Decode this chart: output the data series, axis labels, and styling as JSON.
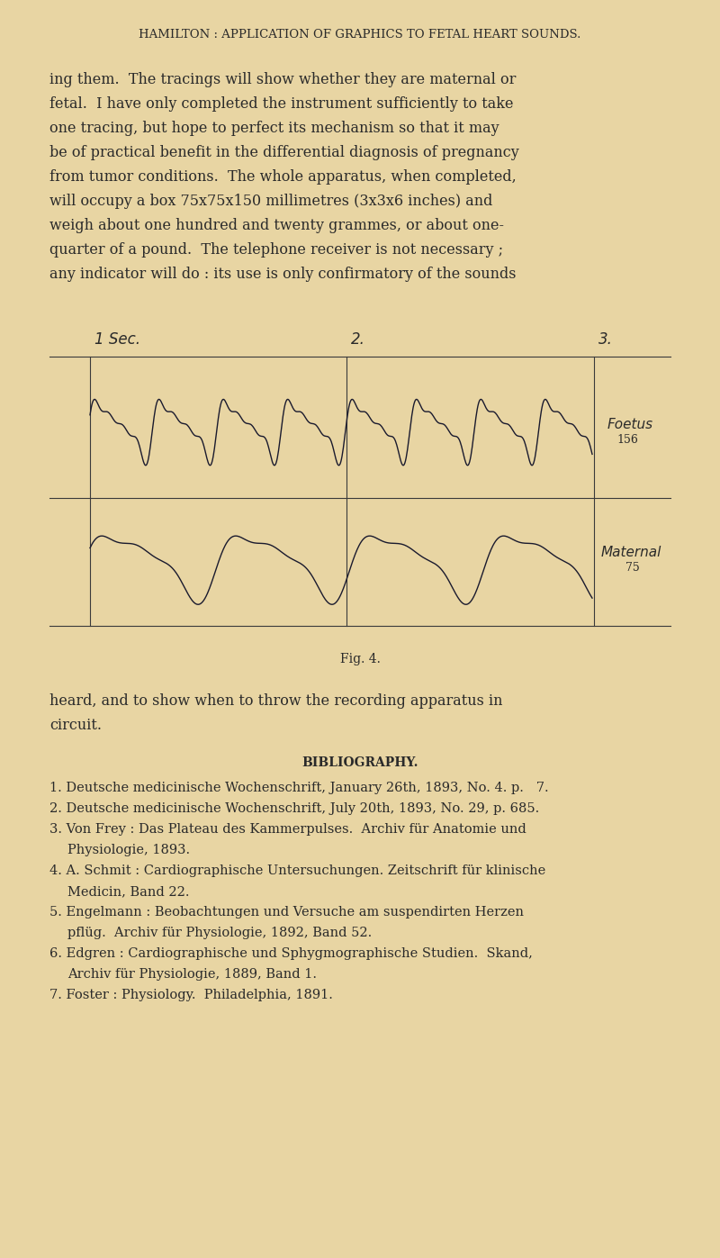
{
  "bg_color": "#e8d5a3",
  "text_color": "#2a2a2a",
  "title": "HAMILTON : APPLICATION OF GRAPHICS TO FETAL HEART SOUNDS.",
  "paragraph": "ing them.  The tracings will show whether they are maternal or fetal.  I have only completed the instrument sufficiently to take one tracing, but hope to perfect its mechanism so that it may be of practical benefit in the differential diagnosis of pregnancy from tumor conditions.  The whole apparatus, when completed, will occupy a box 75x75x150 millimetres (3x3x6 inches) and weigh about one hundred and twenty grammes, or about one-quarter of a pound.  The telephone receiver is not necessary ; any indicator will do : its use is only confirmatory of the sounds",
  "fig_caption": "Fig. 4.",
  "post_caption": "heard, and to show when to throw the recording apparatus in circuit.",
  "bibliography_title": "BIBLIOGRAPHY.",
  "bibliography": [
    "1. Deutsche medicinische Wochenschrift, January 26th, 1893, No. 4. p.   7.",
    "2. Deutsche medicinische Wochenschrift, July 20th, 1893, No. 29, p. 685.",
    "3. Von Frey : Das Plateau des Kammerpulses.  Archiv für Anatomie und Physiologie, 1893.",
    "4. A. Schmit : Cardiographische Untersuchungen. Zeitschrift für klinische Medicin, Band 22.",
    "5. Engelmann : Beobachtungen und Versuche am suspendirten Herzen pflüg.  Archiv für Physiologie, 1892, Band 52.",
    "6. Edgren : Cardiographische und Sphygmographische Studien.  Skand, Archiv für Physiologie, 1889, Band 1.",
    "7. Foster : Physiology.  Philadelphia, 1891."
  ],
  "chart": {
    "label1": "1 Sec.",
    "label2": "2.",
    "label3": "3.",
    "foetus_label": "Foetus\n156",
    "maternal_label": "Maternal\n75",
    "line_color": "#1a1a2e",
    "grid_color": "#3a3a3a"
  }
}
